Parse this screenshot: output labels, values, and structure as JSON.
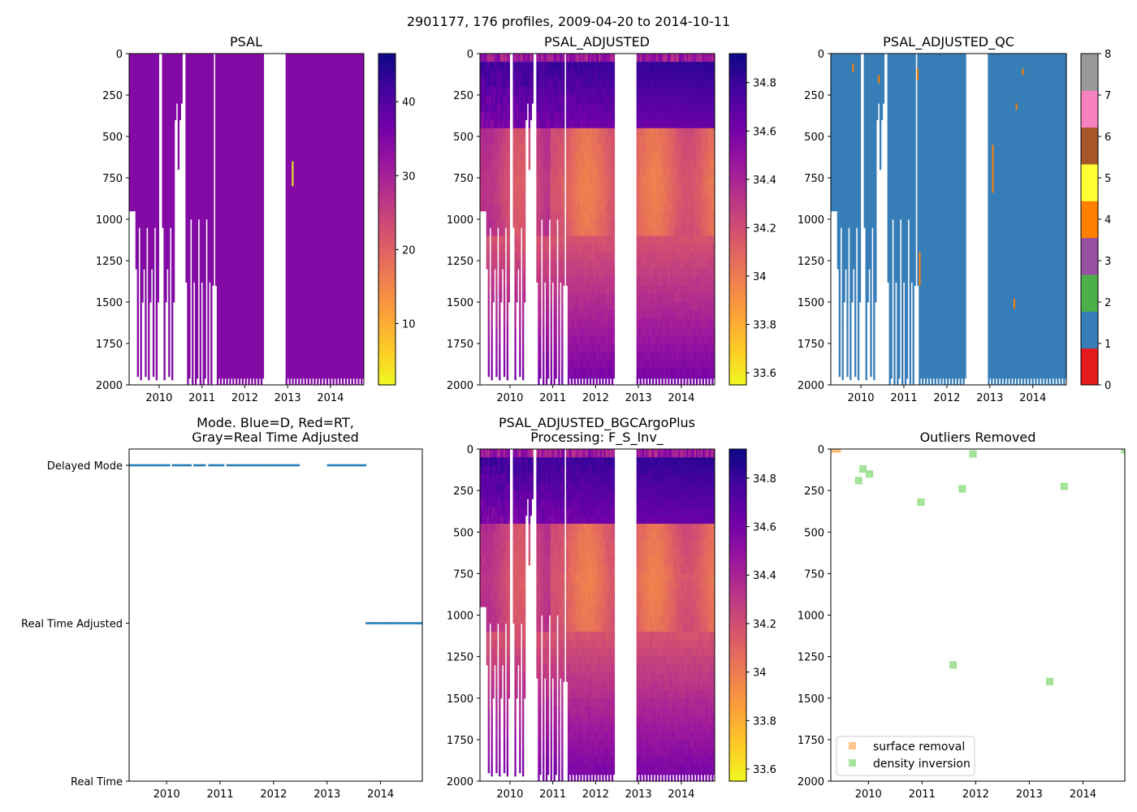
{
  "figure": {
    "suptitle": "2901177, 176 profiles, 2009-04-20 to 2014-10-11"
  },
  "colors": {
    "plasma": [
      "#0d0887",
      "#46039f",
      "#7201a8",
      "#9c179e",
      "#bd3786",
      "#d8576b",
      "#ed7953",
      "#fb9f3a",
      "#fdca26",
      "#f0f921"
    ],
    "qc": [
      "#e41a1c",
      "#377eb8",
      "#4daf4a",
      "#984ea3",
      "#ff7f00",
      "#ffff33",
      "#a65628",
      "#f781bf",
      "#999999"
    ],
    "mode_point": "#1f77b4",
    "surface_removal": "#ffbb78",
    "density_inversion": "#98df8a",
    "axis": "#000000"
  },
  "chart_data": [
    {
      "id": "psal",
      "type": "heatmap",
      "title": "PSAL",
      "xlim": [
        2009.3,
        2014.78
      ],
      "ylim": [
        2000,
        0
      ],
      "xticks": [
        2010,
        2011,
        2012,
        2013,
        2014
      ],
      "yticks": [
        0,
        250,
        500,
        750,
        1000,
        1250,
        1500,
        1750,
        2000
      ],
      "colorbar": {
        "cmap": "plasma",
        "vmin": 1.7,
        "vmax": 46.5,
        "ticks": [
          10,
          20,
          30,
          40
        ]
      },
      "gap": [
        2012.45,
        2012.95
      ],
      "typical_value": 34.5,
      "anomaly": {
        "x": 2013.1,
        "y0": 650,
        "y1": 800,
        "value": 2.0
      }
    },
    {
      "id": "psal_adj",
      "type": "heatmap",
      "title": "PSAL_ADJUSTED",
      "xlim": [
        2009.3,
        2014.78
      ],
      "ylim": [
        2000,
        0
      ],
      "xticks": [
        2010,
        2011,
        2012,
        2013,
        2014
      ],
      "yticks": [
        0,
        250,
        500,
        750,
        1000,
        1250,
        1500,
        1750,
        2000
      ],
      "colorbar": {
        "cmap": "plasma",
        "vmin": 33.55,
        "vmax": 34.92,
        "ticks": [
          33.6,
          33.8,
          34.0,
          34.2,
          34.4,
          34.6,
          34.8
        ]
      },
      "gap": [
        2012.45,
        2012.95
      ],
      "profile": {
        "surface": 34.3,
        "shallow": 34.85,
        "mid": 34.15,
        "deep": 34.58
      }
    },
    {
      "id": "psal_qc",
      "type": "heatmap",
      "title": "PSAL_ADJUSTED_QC",
      "xlim": [
        2009.3,
        2014.78
      ],
      "ylim": [
        2000,
        0
      ],
      "xticks": [
        2010,
        2011,
        2012,
        2013,
        2014
      ],
      "yticks": [
        0,
        250,
        500,
        750,
        1000,
        1250,
        1500,
        1750,
        2000
      ],
      "colorbar": {
        "cmap": "qc",
        "vmin": 0,
        "vmax": 8,
        "ticks": [
          0,
          1,
          2,
          3,
          4,
          5,
          6,
          7,
          8
        ]
      },
      "gap": [
        2012.45,
        2012.95
      ],
      "flag4": [
        {
          "x": 2009.8,
          "y0": 60,
          "y1": 110
        },
        {
          "x": 2010.4,
          "y0": 130,
          "y1": 180
        },
        {
          "x": 2011.3,
          "y0": 90,
          "y1": 160
        },
        {
          "x": 2011.35,
          "y0": 1200,
          "y1": 1400
        },
        {
          "x": 2013.05,
          "y0": 550,
          "y1": 840
        },
        {
          "x": 2013.55,
          "y0": 1480,
          "y1": 1540
        },
        {
          "x": 2013.6,
          "y0": 300,
          "y1": 340
        },
        {
          "x": 2013.75,
          "y0": 90,
          "y1": 130
        }
      ]
    },
    {
      "id": "mode",
      "type": "scatter",
      "title_lines": [
        "Mode. Blue=D, Red=RT,",
        "Gray=Real Time Adjusted"
      ],
      "xlim": [
        2009.3,
        2014.78
      ],
      "xticks": [
        2010,
        2011,
        2012,
        2013,
        2014
      ],
      "yticks": [
        {
          "value": 0,
          "label": "Real Time"
        },
        {
          "value": 1,
          "label": "Real Time Adjusted"
        },
        {
          "value": 2,
          "label": "Delayed Mode"
        }
      ],
      "ylim": [
        0,
        2
      ],
      "segments": [
        {
          "x0": 2009.3,
          "x1": 2010.05,
          "y": 2
        },
        {
          "x0": 2010.1,
          "x1": 2010.45,
          "y": 2
        },
        {
          "x0": 2010.5,
          "x1": 2010.72,
          "y": 2
        },
        {
          "x0": 2010.78,
          "x1": 2011.05,
          "y": 2
        },
        {
          "x0": 2011.12,
          "x1": 2012.48,
          "y": 2
        },
        {
          "x0": 2013.0,
          "x1": 2013.72,
          "y": 2
        },
        {
          "x0": 2013.72,
          "x1": 2014.78,
          "y": 1
        }
      ]
    },
    {
      "id": "psal_bgc",
      "type": "heatmap",
      "title_lines": [
        "PSAL_ADJUSTED_BGCArgoPlus",
        "Processing: F_S_Inv_"
      ],
      "xlim": [
        2009.3,
        2014.78
      ],
      "ylim": [
        2000,
        0
      ],
      "xticks": [
        2010,
        2011,
        2012,
        2013,
        2014
      ],
      "yticks": [
        0,
        250,
        500,
        750,
        1000,
        1250,
        1500,
        1750,
        2000
      ],
      "colorbar": {
        "cmap": "plasma",
        "vmin": 33.55,
        "vmax": 34.92,
        "ticks": [
          33.6,
          33.8,
          34.0,
          34.2,
          34.4,
          34.6,
          34.8
        ]
      },
      "gap": [
        2012.45,
        2012.95
      ],
      "profile": {
        "surface": 34.3,
        "shallow": 34.85,
        "mid": 34.15,
        "deep": 34.58
      }
    },
    {
      "id": "outliers",
      "type": "scatter",
      "title": "Outliers Removed",
      "xlim": [
        2009.3,
        2014.78
      ],
      "ylim": [
        2000,
        0
      ],
      "xticks": [
        2010,
        2011,
        2012,
        2013,
        2014
      ],
      "yticks": [
        0,
        250,
        500,
        750,
        1000,
        1250,
        1500,
        1750,
        2000
      ],
      "legend_position": "lower-left",
      "series": [
        {
          "name": "surface removal",
          "color_key": "surface_removal",
          "points": [
            [
              2009.38,
              0
            ],
            [
              2009.42,
              0
            ]
          ]
        },
        {
          "name": "density inversion",
          "color_key": "density_inversion",
          "points": [
            [
              2009.82,
              190
            ],
            [
              2009.9,
              120
            ],
            [
              2010.02,
              150
            ],
            [
              2010.98,
              320
            ],
            [
              2011.58,
              1300
            ],
            [
              2011.75,
              240
            ],
            [
              2011.95,
              30
            ],
            [
              2013.38,
              1400
            ],
            [
              2013.65,
              225
            ],
            [
              2014.78,
              5
            ]
          ]
        }
      ]
    }
  ]
}
